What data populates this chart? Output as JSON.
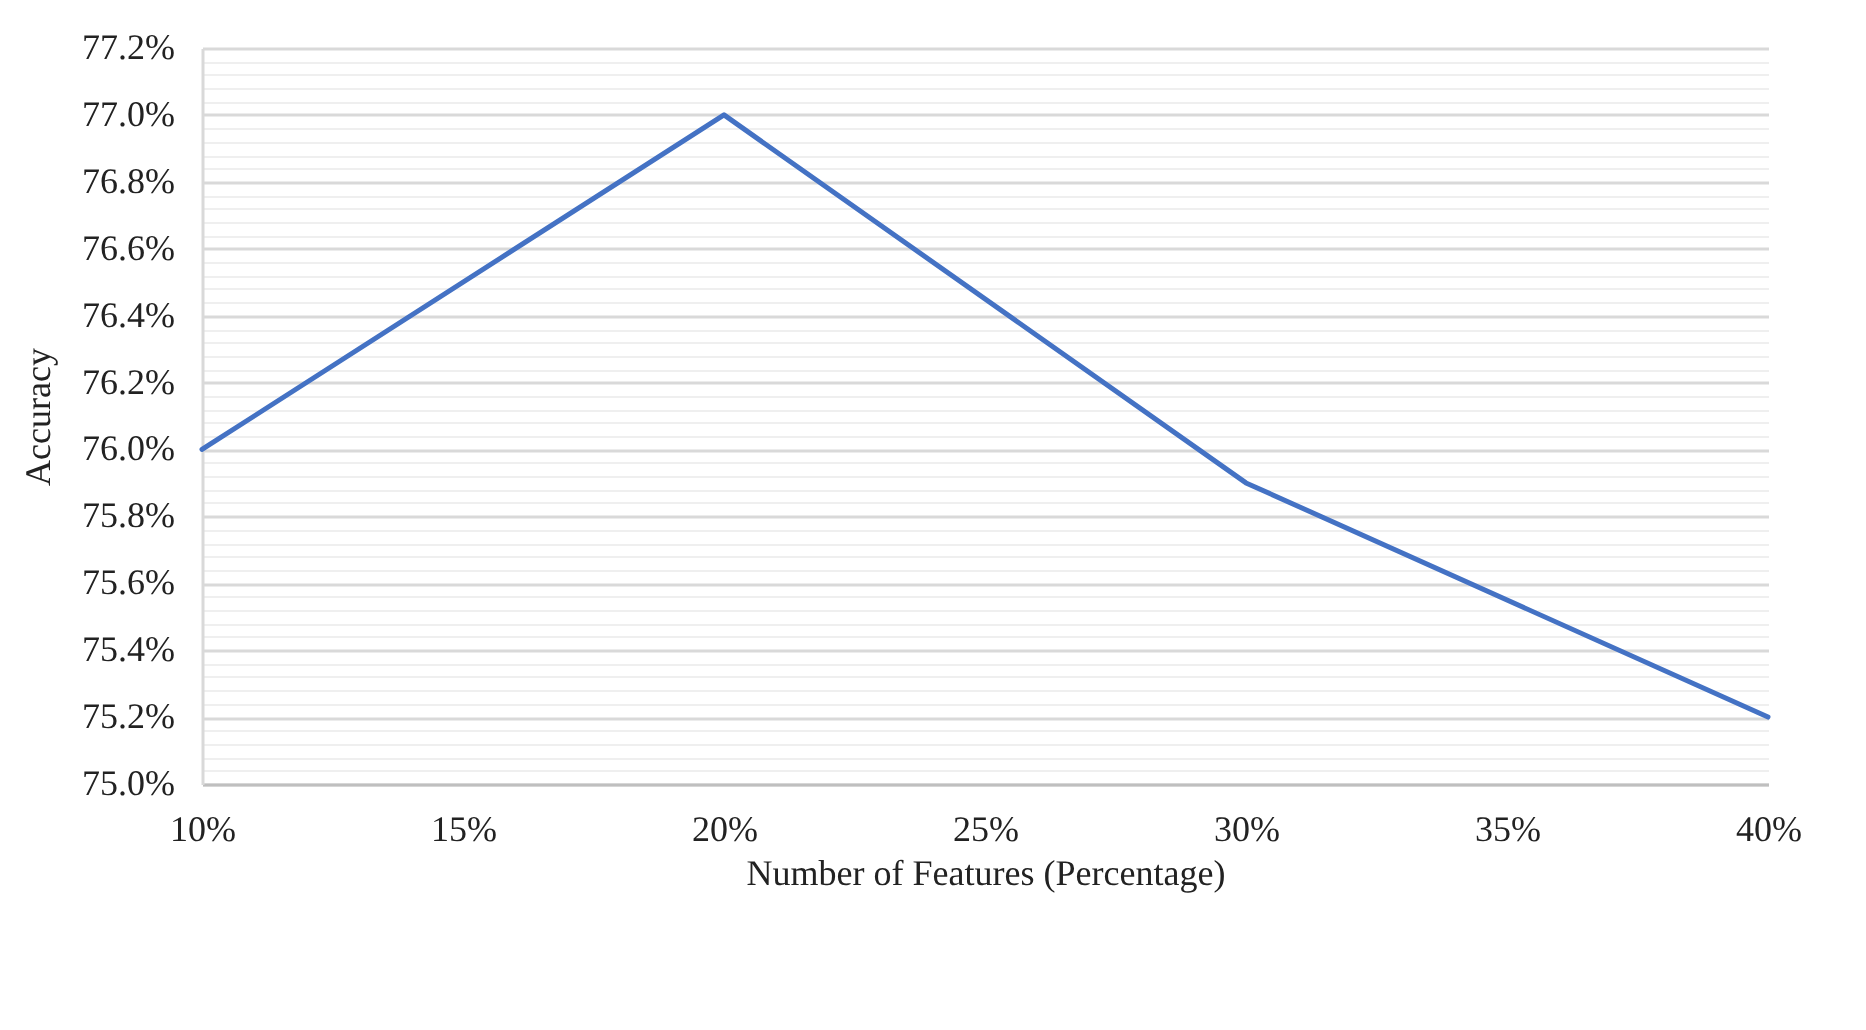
{
  "chart_data": {
    "type": "line",
    "xlabel": "Number of Features (Percentage)",
    "ylabel": "Accuracy",
    "x": [
      10,
      20,
      30,
      40
    ],
    "series": [
      {
        "color": "#4472c4",
        "values": [
          76.0,
          77.0,
          75.9,
          75.2
        ]
      }
    ],
    "xlim": [
      10,
      40
    ],
    "xticks": [
      {
        "value": 10,
        "label": "10%"
      },
      {
        "value": 15,
        "label": "15%"
      },
      {
        "value": 20,
        "label": "20%"
      },
      {
        "value": 25,
        "label": "25%"
      },
      {
        "value": 30,
        "label": "30%"
      },
      {
        "value": 35,
        "label": "35%"
      },
      {
        "value": 40,
        "label": "40%"
      }
    ],
    "ylim": [
      75.0,
      77.2
    ],
    "yticks": [
      {
        "value": 75.0,
        "label": "75.0%"
      },
      {
        "value": 75.04,
        "label": null
      },
      {
        "value": 75.08,
        "label": null
      },
      {
        "value": 75.12,
        "label": null
      },
      {
        "value": 75.16,
        "label": null
      },
      {
        "value": 75.2,
        "label": "75.2%"
      },
      {
        "value": 75.24,
        "label": null
      },
      {
        "value": 75.28,
        "label": null
      },
      {
        "value": 75.32,
        "label": null
      },
      {
        "value": 75.36,
        "label": null
      },
      {
        "value": 75.4,
        "label": "75.4%"
      },
      {
        "value": 75.44,
        "label": null
      },
      {
        "value": 75.48,
        "label": null
      },
      {
        "value": 75.52,
        "label": null
      },
      {
        "value": 75.56,
        "label": null
      },
      {
        "value": 75.6,
        "label": "75.6%"
      },
      {
        "value": 75.64,
        "label": null
      },
      {
        "value": 75.68,
        "label": null
      },
      {
        "value": 75.72,
        "label": null
      },
      {
        "value": 75.76,
        "label": null
      },
      {
        "value": 75.8,
        "label": "75.8%"
      },
      {
        "value": 75.84,
        "label": null
      },
      {
        "value": 75.88,
        "label": null
      },
      {
        "value": 75.92,
        "label": null
      },
      {
        "value": 75.96,
        "label": null
      },
      {
        "value": 76.0,
        "label": "76.0%"
      },
      {
        "value": 76.04,
        "label": null
      },
      {
        "value": 76.08,
        "label": null
      },
      {
        "value": 76.12,
        "label": null
      },
      {
        "value": 76.16,
        "label": null
      },
      {
        "value": 76.2,
        "label": "76.2%"
      },
      {
        "value": 76.24,
        "label": null
      },
      {
        "value": 76.28,
        "label": null
      },
      {
        "value": 76.32,
        "label": null
      },
      {
        "value": 76.36,
        "label": null
      },
      {
        "value": 76.4,
        "label": "76.4%"
      },
      {
        "value": 76.44,
        "label": null
      },
      {
        "value": 76.48,
        "label": null
      },
      {
        "value": 76.52,
        "label": null
      },
      {
        "value": 76.56,
        "label": null
      },
      {
        "value": 76.6,
        "label": "76.6%"
      },
      {
        "value": 76.64,
        "label": null
      },
      {
        "value": 76.68,
        "label": null
      },
      {
        "value": 76.72,
        "label": null
      },
      {
        "value": 76.76,
        "label": null
      },
      {
        "value": 76.8,
        "label": "76.8%"
      },
      {
        "value": 76.84,
        "label": null
      },
      {
        "value": 76.88,
        "label": null
      },
      {
        "value": 76.92,
        "label": null
      },
      {
        "value": 76.96,
        "label": null
      },
      {
        "value": 77.0,
        "label": "77.0%"
      },
      {
        "value": 77.04,
        "label": null
      },
      {
        "value": 77.08,
        "label": null
      },
      {
        "value": 77.12,
        "label": null
      },
      {
        "value": 77.16,
        "label": null
      },
      {
        "value": 77.2,
        "label": "77.2%"
      }
    ],
    "grid": "y",
    "marker": "none",
    "line_style": "solid"
  }
}
